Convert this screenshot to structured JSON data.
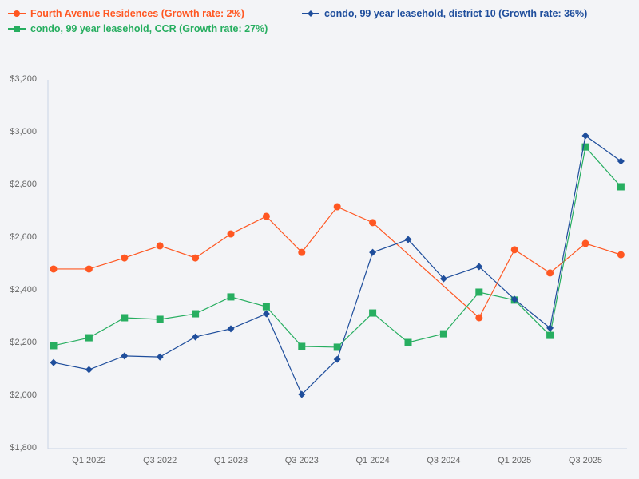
{
  "chart_data": {
    "type": "line",
    "title": "",
    "xlabel": "",
    "ylabel": "",
    "ylim": [
      1800,
      3200
    ],
    "yticks": [
      "$1,800",
      "$2,000",
      "$2,200",
      "$2,400",
      "$2,600",
      "$2,800",
      "$3,000",
      "$3,200"
    ],
    "ytick_values": [
      1800,
      2000,
      2200,
      2400,
      2600,
      2800,
      3000,
      3200
    ],
    "x": [
      "Q4 2021",
      "Q1 2022",
      "Q2 2022",
      "Q3 2022",
      "Q4 2022",
      "Q1 2023",
      "Q2 2023",
      "Q3 2023",
      "Q4 2023",
      "Q1 2024",
      "Q2 2024",
      "Q3 2024",
      "Q4 2024",
      "Q1 2025",
      "Q2 2025",
      "Q3 2025",
      "Q4 2025"
    ],
    "xtick_labels": [
      "Q1 2022",
      "Q3 2022",
      "Q1 2023",
      "Q3 2023",
      "Q1 2024",
      "Q3 2024",
      "Q1 2025",
      "Q3 2025"
    ],
    "grid": false,
    "legend_position": "top",
    "series": [
      {
        "name": "Fourth Avenue Residences (Growth rate: 2%)",
        "color": "#ff5722",
        "marker": "circle",
        "values": [
          2482,
          2482,
          2524,
          2570,
          2524,
          2615,
          2682,
          2545,
          2718,
          2658,
          null,
          null,
          2297,
          2555,
          2467,
          2579,
          2536
        ]
      },
      {
        "name": "condo, 99 year leasehold, CCR (Growth rate: 27%)",
        "color": "#27ae60",
        "marker": "square",
        "values": [
          2191,
          2221,
          2297,
          2291,
          2312,
          2376,
          2339,
          2188,
          2185,
          2315,
          2203,
          2236,
          2394,
          2364,
          2230,
          2945,
          2794
        ]
      },
      {
        "name": "condo, 99 year leasehold, district 10 (Growth rate: 36%)",
        "color": "#1f4e9c",
        "marker": "diamond",
        "values": [
          2127,
          2100,
          2152,
          2148,
          2224,
          2255,
          2312,
          2006,
          2139,
          2545,
          2594,
          2445,
          2491,
          2367,
          2258,
          2988,
          2891
        ]
      }
    ]
  },
  "legend": {
    "s0": "Fourth Avenue Residences (Growth rate: 2%)",
    "s1": "condo, 99 year leasehold, CCR (Growth rate: 27%)",
    "s2": "condo, 99 year leasehold, district 10 (Growth rate: 36%)"
  }
}
